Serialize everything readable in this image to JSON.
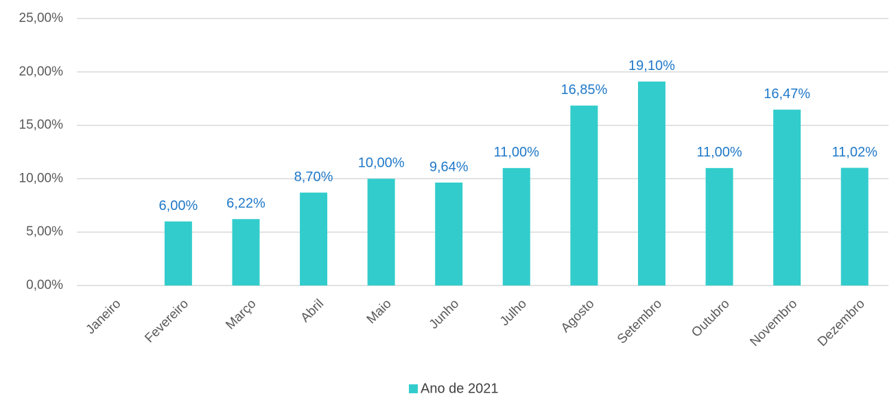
{
  "chart_data": {
    "type": "bar",
    "categories": [
      "Janeiro",
      "Fevereiro",
      "Março",
      "Abril",
      "Maio",
      "Junho",
      "Julho",
      "Agosto",
      "Setembro",
      "Outubro",
      "Novembro",
      "Dezembro"
    ],
    "series": [
      {
        "name": "Ano de 2021",
        "color": "#33cccc",
        "values": [
          null,
          6.0,
          6.22,
          8.7,
          10.0,
          9.64,
          11.0,
          16.85,
          19.1,
          11.0,
          16.47,
          11.02
        ],
        "value_labels": [
          null,
          "6,00%",
          "6,22%",
          "8,70%",
          "10,00%",
          "9,64%",
          "11,00%",
          "16,85%",
          "19,10%",
          "11,00%",
          "16,47%",
          "11,02%"
        ]
      }
    ],
    "ylim": [
      0,
      25
    ],
    "yticks": [
      {
        "value": 0,
        "label": "0,00%"
      },
      {
        "value": 5,
        "label": "5,00%"
      },
      {
        "value": 10,
        "label": "10,00%"
      },
      {
        "value": 15,
        "label": "15,00%"
      },
      {
        "value": 20,
        "label": "20,00%"
      },
      {
        "value": 25,
        "label": "25,00%"
      }
    ],
    "grid": true,
    "legend": "bottom",
    "value_label_color": "#1f78c8"
  }
}
